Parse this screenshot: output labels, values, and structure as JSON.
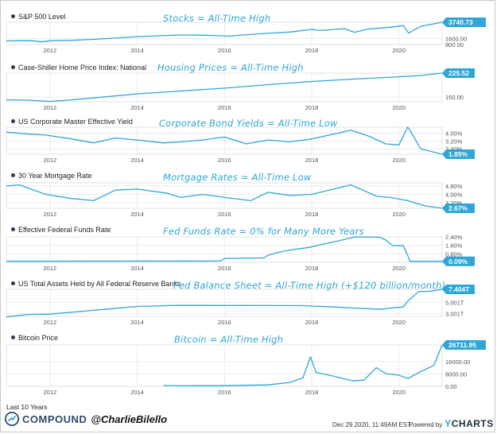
{
  "x_axis": {
    "start": 2011.0,
    "end": 2020.99,
    "ticks": [
      "2012",
      "2014",
      "2016",
      "2018",
      "2020"
    ]
  },
  "colors": {
    "line": "#2fa6d6",
    "callout": "#2fa6d6",
    "grid": "#e6e6e6",
    "annotation": "#2fa6d6"
  },
  "chart_data": [
    {
      "type": "line",
      "title": "S&P 500 Level",
      "annotation": "Stocks = All-Time High",
      "ylim": [
        800,
        3740.73
      ],
      "yticks": [
        "1600.00",
        "800.00"
      ],
      "yticks_values": [
        1600,
        800
      ],
      "last_value": "3740.73",
      "series": [
        {
          "x": [
            2011.0,
            2011.6,
            2011.8,
            2012.0,
            2012.5,
            2013.0,
            2013.5,
            2014.0,
            2014.5,
            2015.0,
            2015.6,
            2016.1,
            2016.5,
            2017.0,
            2017.5,
            2018.0,
            2018.2,
            2018.75,
            2018.98,
            2019.3,
            2019.8,
            2020.1,
            2020.22,
            2020.5,
            2020.99
          ],
          "y": [
            1280,
            1300,
            1150,
            1290,
            1360,
            1480,
            1650,
            1840,
            1960,
            2060,
            2020,
            1900,
            2100,
            2280,
            2450,
            2800,
            2650,
            2900,
            2420,
            2850,
            3080,
            3300,
            2300,
            3200,
            3740.73
          ]
        }
      ]
    },
    {
      "type": "line",
      "title": "Case-Shiller Home Price Index: National",
      "annotation": "Housing Prices = All-Time High",
      "ylim": [
        135,
        225.52
      ],
      "yticks": [
        "150.00"
      ],
      "yticks_values": [
        150
      ],
      "last_value": "225.52",
      "series": [
        {
          "x": [
            2011.0,
            2011.5,
            2012.0,
            2012.5,
            2013.0,
            2014.0,
            2015.0,
            2016.0,
            2017.0,
            2018.0,
            2019.0,
            2020.0,
            2020.5,
            2020.99
          ],
          "y": [
            141,
            140,
            136,
            141,
            147,
            160,
            169,
            178,
            189,
            199,
            207,
            214,
            218,
            225.52
          ]
        }
      ]
    },
    {
      "type": "line",
      "title": "US Corporate Master Effective Yield",
      "annotation": "Corporate Bond Yields = All-Time Low",
      "ylim": [
        1.85,
        4.6
      ],
      "yticks": [
        "4.00%",
        "3.20%",
        "2.40%"
      ],
      "yticks_values": [
        4.0,
        3.2,
        2.4
      ],
      "last_value": "1.85%",
      "series": [
        {
          "x": [
            2011.0,
            2011.5,
            2011.9,
            2012.5,
            2013.0,
            2013.5,
            2014.0,
            2014.6,
            2015.0,
            2015.5,
            2016.0,
            2016.5,
            2017.0,
            2017.5,
            2018.0,
            2018.5,
            2018.9,
            2019.3,
            2019.7,
            2020.0,
            2020.2,
            2020.25,
            2020.5,
            2020.99
          ],
          "y": [
            4.1,
            3.9,
            3.8,
            3.4,
            3.0,
            3.5,
            3.3,
            3.0,
            3.1,
            3.3,
            3.6,
            2.9,
            3.3,
            3.1,
            3.4,
            3.9,
            4.3,
            3.7,
            2.9,
            2.8,
            4.6,
            4.3,
            2.4,
            1.85
          ]
        }
      ]
    },
    {
      "type": "line",
      "title": "30 Year Mortgage Rate",
      "annotation": "Mortgage Rates = All-Time Low",
      "ylim": [
        2.67,
        5.1
      ],
      "yticks": [
        "4.80%",
        "4.00%",
        "3.20%"
      ],
      "yticks_values": [
        4.8,
        4.0,
        3.2
      ],
      "last_value": "2.67%",
      "series": [
        {
          "x": [
            2011.0,
            2011.3,
            2011.9,
            2012.5,
            2013.0,
            2013.5,
            2014.0,
            2014.7,
            2015.0,
            2015.5,
            2016.0,
            2016.6,
            2017.0,
            2017.5,
            2018.0,
            2018.9,
            2019.5,
            2019.8,
            2020.2,
            2020.6,
            2020.99
          ],
          "y": [
            4.8,
            4.9,
            4.0,
            3.6,
            3.4,
            4.4,
            4.5,
            4.1,
            3.7,
            4.0,
            3.7,
            3.4,
            4.2,
            3.9,
            4.0,
            4.9,
            3.8,
            3.7,
            3.4,
            2.9,
            2.67
          ]
        }
      ]
    },
    {
      "type": "line",
      "title": "Effective Federal Funds Rate",
      "annotation": "Fed Funds Rate = 0% for Many More Years",
      "ylim": [
        0,
        2.4
      ],
      "yticks": [
        "2.40%",
        "1.60%",
        "0.80%"
      ],
      "yticks_values": [
        2.4,
        1.6,
        0.8
      ],
      "last_value": "0.09%",
      "series": [
        {
          "x": [
            2011.0,
            2015.9,
            2016.0,
            2016.9,
            2017.0,
            2017.2,
            2017.5,
            2017.95,
            2018.2,
            2018.5,
            2018.75,
            2019.0,
            2019.55,
            2019.7,
            2019.85,
            2020.1,
            2020.2,
            2020.25,
            2020.99
          ],
          "y": [
            0.1,
            0.12,
            0.37,
            0.41,
            0.66,
            0.91,
            1.16,
            1.41,
            1.66,
            1.91,
            2.16,
            2.4,
            2.38,
            2.1,
            1.6,
            1.55,
            0.65,
            0.09,
            0.09
          ]
        }
      ]
    },
    {
      "type": "line",
      "title": "US Total Assets Held by All Federal Reserve Banks",
      "annotation": "Fed Balance Sheet = All-Time High (+$120 billion/month)",
      "ylim": [
        2.5,
        7.404
      ],
      "yticks": [
        "5.001T",
        "3.001T"
      ],
      "yticks_values": [
        5.001,
        3.001
      ],
      "last_value": "7.404T",
      "series": [
        {
          "x": [
            2011.0,
            2011.5,
            2012.0,
            2013.0,
            2014.0,
            2014.9,
            2016.0,
            2017.0,
            2017.8,
            2018.5,
            2019.0,
            2019.6,
            2019.8,
            2020.1,
            2020.2,
            2020.45,
            2020.7,
            2020.99
          ],
          "y": [
            2.4,
            2.85,
            2.9,
            3.6,
            4.3,
            4.5,
            4.48,
            4.46,
            4.45,
            4.2,
            4.0,
            3.77,
            4.0,
            4.2,
            5.25,
            7.0,
            7.05,
            7.404
          ]
        }
      ]
    },
    {
      "type": "line",
      "title": "Bitcoin Price",
      "annotation": "Bitcoin = All-Time High",
      "ylim": [
        0,
        26711.95
      ],
      "yticks": [
        "16000.00",
        "8000.00",
        "0.00"
      ],
      "yticks_values": [
        16000,
        8000,
        0
      ],
      "last_value": "26711.95",
      "series": [
        {
          "x": [
            2014.6,
            2015.0,
            2016.0,
            2016.5,
            2017.0,
            2017.5,
            2017.8,
            2017.97,
            2018.1,
            2018.5,
            2018.95,
            2019.2,
            2019.48,
            2019.7,
            2020.0,
            2020.2,
            2020.5,
            2020.8,
            2020.99
          ],
          "y": [
            500,
            300,
            430,
            650,
            900,
            2500,
            5500,
            19000,
            9000,
            6500,
            3500,
            4000,
            12000,
            8200,
            7200,
            5000,
            9500,
            13500,
            26711.95
          ]
        }
      ]
    }
  ],
  "footer": {
    "period": "Last 10 Years",
    "brand": "COMPOUND",
    "handle": "@CharlieBilello",
    "timestamp": "Dec 29 2020, 11:49AM EST.",
    "powered": "Powered by",
    "ycharts_y": "Y",
    "ycharts_rest": "CHARTS"
  }
}
